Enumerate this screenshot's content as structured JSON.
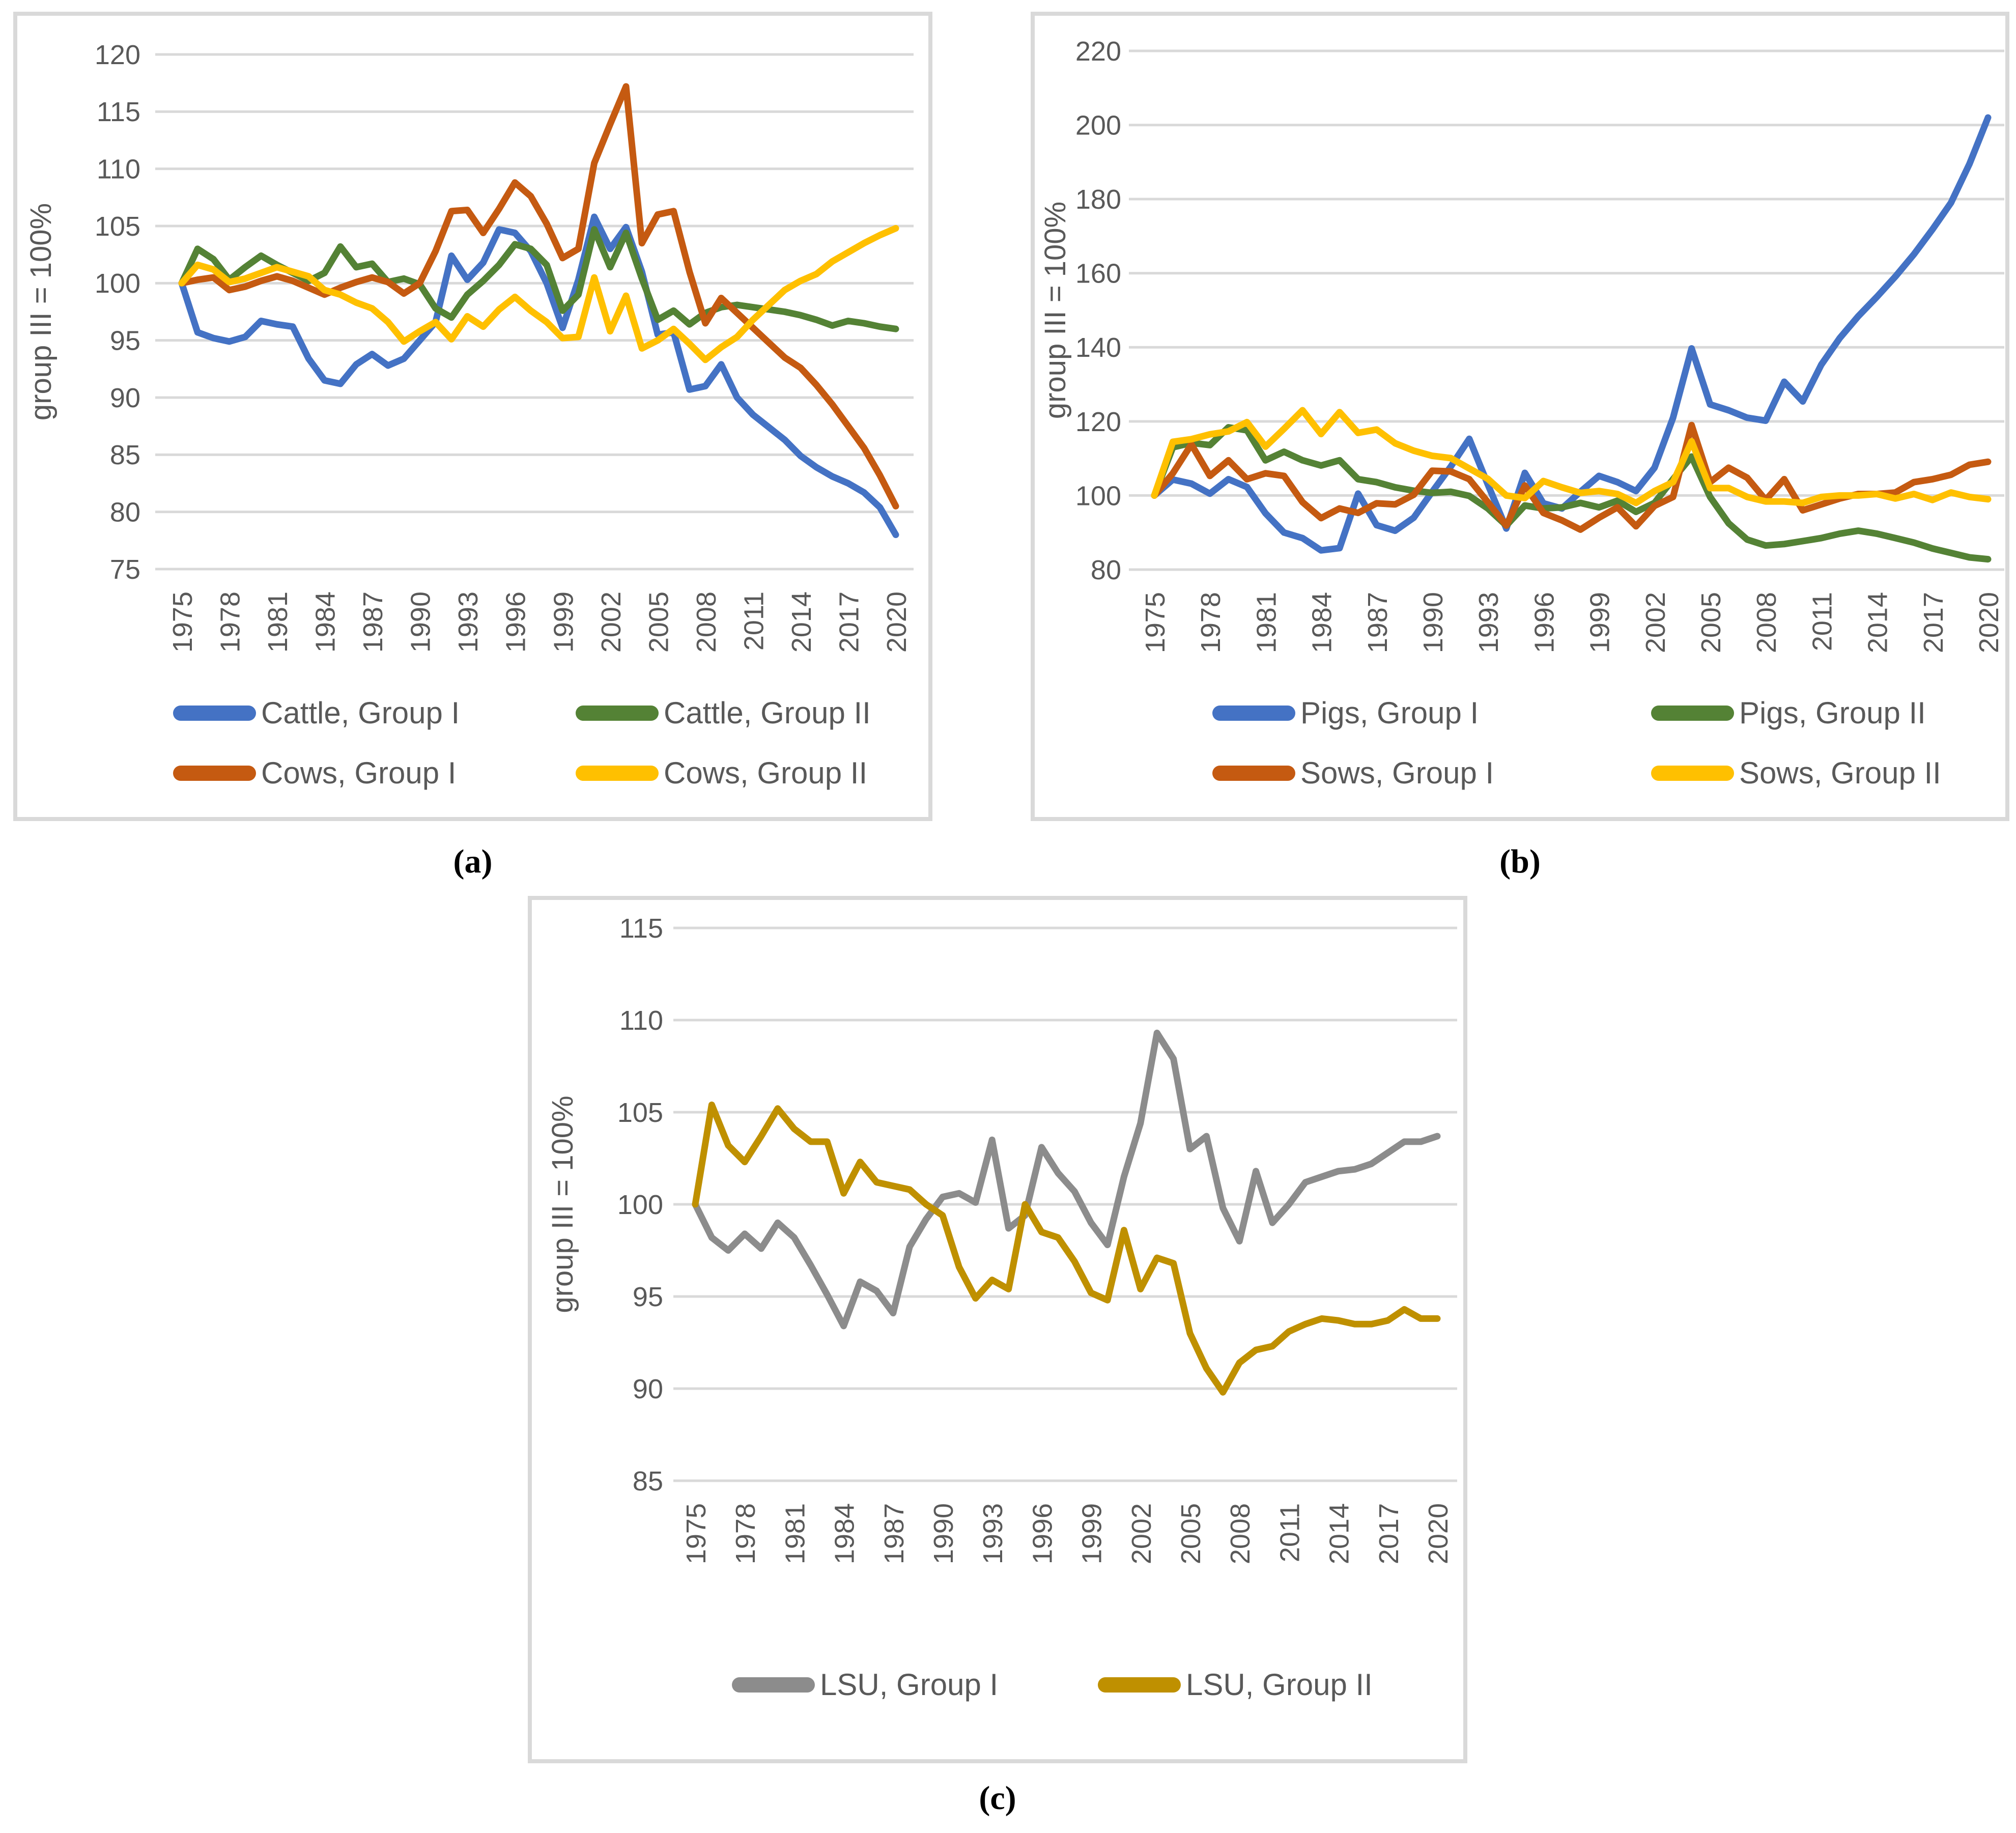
{
  "figure": {
    "captions": {
      "a": "(a)",
      "b": "(b)",
      "c": "(c)"
    }
  },
  "style": {
    "grid_color": "#D9D9D9",
    "tick_color": "#595959",
    "border_color": "#D9D9D9"
  },
  "chart_data": [
    {
      "id": "a",
      "type": "line",
      "title": "",
      "xlabel": "",
      "ylabel": "group III = 100%",
      "ylim": [
        75,
        120
      ],
      "yticks": [
        120,
        115,
        110,
        105,
        100,
        95,
        90,
        85,
        80,
        75
      ],
      "x_start": 1975,
      "x_end": 2020,
      "xticks": [
        1975,
        1978,
        1981,
        1984,
        1987,
        1990,
        1993,
        1996,
        1999,
        2002,
        2005,
        2008,
        2011,
        2014,
        2017,
        2020
      ],
      "grid": true,
      "legend_position": "bottom",
      "series": [
        {
          "name": "Cattle, Group I",
          "color": "#4472C4",
          "values": [
            100,
            95.7,
            95.2,
            94.9,
            95.3,
            96.7,
            96.4,
            96.2,
            93.4,
            91.5,
            91.2,
            92.9,
            93.8,
            92.8,
            93.4,
            95.0,
            96.6,
            102.4,
            100.3,
            101.8,
            104.7,
            104.4,
            102.8,
            100.0,
            96.1,
            100.3,
            105.8,
            103.0,
            104.9,
            101.0,
            95.5,
            95.7,
            90.7,
            91.0,
            92.9,
            90.0,
            88.5,
            87.4,
            86.3,
            84.9,
            83.9,
            83.1,
            82.5,
            81.7,
            80.4,
            78.0
          ]
        },
        {
          "name": "Cattle, Group II",
          "color": "#548235",
          "values": [
            100,
            103.0,
            102.1,
            100.3,
            101.4,
            102.4,
            101.6,
            100.9,
            100.2,
            100.9,
            103.2,
            101.4,
            101.7,
            100.1,
            100.4,
            99.9,
            97.8,
            97.0,
            99.0,
            100.2,
            101.6,
            103.4,
            103.0,
            101.6,
            97.6,
            99.0,
            104.7,
            101.4,
            104.4,
            100.4,
            96.8,
            97.6,
            96.4,
            97.4,
            97.9,
            98.1,
            97.9,
            97.7,
            97.5,
            97.2,
            96.8,
            96.3,
            96.7,
            96.5,
            96.2,
            96.0
          ]
        },
        {
          "name": "Cows, Group I",
          "color": "#C55A11",
          "values": [
            100,
            100.3,
            100.5,
            99.4,
            99.7,
            100.2,
            100.6,
            100.2,
            99.6,
            99.0,
            99.6,
            100.1,
            100.5,
            100.1,
            99.1,
            100.0,
            102.8,
            106.3,
            106.4,
            104.4,
            106.5,
            108.8,
            107.6,
            105.2,
            102.2,
            103.0,
            110.5,
            113.9,
            117.2,
            103.5,
            106.0,
            106.3,
            101.0,
            96.5,
            98.7,
            97.4,
            96.1,
            94.8,
            93.5,
            92.6,
            91.1,
            89.4,
            87.5,
            85.6,
            83.2,
            80.5
          ]
        },
        {
          "name": "Cows, Group II",
          "color": "#FFC000",
          "values": [
            100,
            101.6,
            101.2,
            100.1,
            100.4,
            100.9,
            101.4,
            101.0,
            100.6,
            99.4,
            99.0,
            98.3,
            97.8,
            96.6,
            94.9,
            95.8,
            96.6,
            95.1,
            97.1,
            96.2,
            97.7,
            98.8,
            97.6,
            96.6,
            95.2,
            95.3,
            100.5,
            95.8,
            98.9,
            94.3,
            95.0,
            96.0,
            94.7,
            93.3,
            94.4,
            95.3,
            96.8,
            98.1,
            99.4,
            100.2,
            100.8,
            101.9,
            102.7,
            103.5,
            104.2,
            104.8
          ]
        }
      ]
    },
    {
      "id": "b",
      "type": "line",
      "title": "",
      "xlabel": "",
      "ylabel": "group III = 100%",
      "ylim": [
        80,
        220
      ],
      "yticks": [
        220,
        200,
        180,
        160,
        140,
        120,
        100,
        80
      ],
      "x_start": 1975,
      "x_end": 2020,
      "xticks": [
        1975,
        1978,
        1981,
        1984,
        1987,
        1990,
        1993,
        1996,
        1999,
        2002,
        2005,
        2008,
        2011,
        2014,
        2017,
        2020
      ],
      "grid": true,
      "legend_position": "bottom",
      "series": [
        {
          "name": "Pigs, Group I",
          "color": "#4472C4",
          "values": [
            100,
            104.3,
            103.2,
            100.5,
            104.4,
            102.3,
            95.2,
            90.0,
            88.5,
            85.2,
            85.8,
            100.5,
            92.0,
            90.5,
            94.0,
            101.0,
            107.8,
            115.3,
            103.0,
            91.1,
            106.1,
            97.9,
            96.5,
            101.0,
            105.3,
            103.6,
            101.2,
            107.5,
            121.0,
            139.7,
            124.6,
            123.0,
            121.0,
            120.2,
            130.7,
            125.4,
            135.3,
            142.5,
            148.4,
            153.6,
            159.1,
            165.1,
            171.8,
            179.0,
            189.5,
            202.0
          ]
        },
        {
          "name": "Pigs, Group II",
          "color": "#548235",
          "values": [
            100,
            113.0,
            114.2,
            113.6,
            118.4,
            117.6,
            109.5,
            111.8,
            109.5,
            108.1,
            109.5,
            104.4,
            103.6,
            102.2,
            101.3,
            100.7,
            101.0,
            99.9,
            96.5,
            91.9,
            97.3,
            96.5,
            96.8,
            98.0,
            96.8,
            98.6,
            95.6,
            98.0,
            104.4,
            110.5,
            99.6,
            92.5,
            88.1,
            86.5,
            86.9,
            87.7,
            88.5,
            89.7,
            90.5,
            89.7,
            88.5,
            87.3,
            85.7,
            84.5,
            83.3,
            82.8
          ]
        },
        {
          "name": "Sows, Group I",
          "color": "#C55A11",
          "values": [
            100,
            106.0,
            113.8,
            105.3,
            109.5,
            104.4,
            106.0,
            105.3,
            98.2,
            93.9,
            96.5,
            95.3,
            97.9,
            97.6,
            100.2,
            106.7,
            106.5,
            104.4,
            98.2,
            91.9,
            102.7,
            95.3,
            93.3,
            90.8,
            94.0,
            96.8,
            91.7,
            97.2,
            99.6,
            119.0,
            103.6,
            107.5,
            104.8,
            98.8,
            104.4,
            96.0,
            97.6,
            99.2,
            100.4,
            100.4,
            100.8,
            103.6,
            104.4,
            105.6,
            108.3,
            109.1
          ]
        },
        {
          "name": "Sows, Group II",
          "color": "#FFC000",
          "values": [
            100,
            114.5,
            115.2,
            116.5,
            117.3,
            119.8,
            113.2,
            118.0,
            123.0,
            116.6,
            122.5,
            116.9,
            117.8,
            114.1,
            112.1,
            110.7,
            110.1,
            107.3,
            104.5,
            100.0,
            99.3,
            103.9,
            102.2,
            100.7,
            101.2,
            100.4,
            98.0,
            101.2,
            103.6,
            114.6,
            102.0,
            102.0,
            99.6,
            98.4,
            98.4,
            98.0,
            99.6,
            100.0,
            100.0,
            100.4,
            99.2,
            100.4,
            98.8,
            100.8,
            99.6,
            99.0
          ]
        }
      ]
    },
    {
      "id": "c",
      "type": "line",
      "title": "",
      "xlabel": "",
      "ylabel": "group III = 100%",
      "ylim": [
        85,
        115
      ],
      "yticks": [
        115,
        110,
        105,
        100,
        95,
        90,
        85
      ],
      "x_start": 1975,
      "x_end": 2020,
      "xticks": [
        1975,
        1978,
        1981,
        1984,
        1987,
        1990,
        1993,
        1996,
        1999,
        2002,
        2005,
        2008,
        2011,
        2014,
        2017,
        2020
      ],
      "grid": true,
      "legend_position": "bottom",
      "series": [
        {
          "name": "LSU, Group I",
          "color": "#8C8C8C",
          "values": [
            100,
            98.2,
            97.5,
            98.4,
            97.6,
            99.0,
            98.2,
            96.7,
            95.1,
            93.4,
            95.8,
            95.3,
            94.1,
            97.7,
            99.2,
            100.4,
            100.6,
            100.1,
            103.5,
            98.7,
            99.4,
            103.1,
            101.7,
            100.7,
            99.0,
            97.8,
            101.5,
            104.4,
            109.3,
            107.9,
            103.0,
            103.7,
            99.8,
            98.0,
            101.8,
            99.0,
            100.0,
            101.2,
            101.5,
            101.8,
            101.9,
            102.2,
            102.8,
            103.4,
            103.4,
            103.7
          ]
        },
        {
          "name": "LSU, Group II",
          "color": "#BF9000",
          "values": [
            100,
            105.4,
            103.2,
            102.3,
            103.7,
            105.2,
            104.1,
            103.4,
            103.4,
            100.6,
            102.3,
            101.2,
            101.0,
            100.8,
            100.0,
            99.4,
            96.6,
            94.9,
            95.9,
            95.4,
            100.0,
            98.5,
            98.2,
            96.9,
            95.2,
            94.8,
            98.6,
            95.4,
            97.1,
            96.8,
            93.0,
            91.1,
            89.8,
            91.4,
            92.1,
            92.3,
            93.1,
            93.5,
            93.8,
            93.7,
            93.5,
            93.5,
            93.7,
            94.3,
            93.8,
            93.8
          ]
        }
      ]
    }
  ]
}
